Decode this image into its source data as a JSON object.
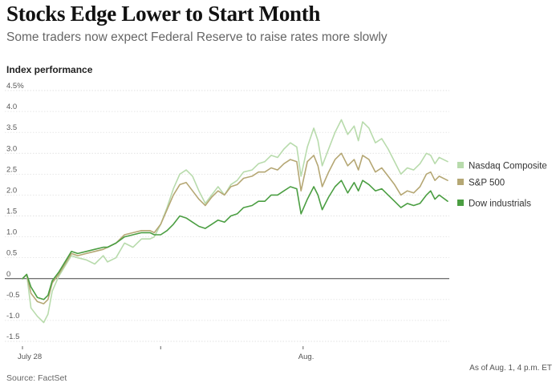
{
  "header": {
    "title": "Stocks Edge Lower to Start Month",
    "subtitle": "Some traders now expect Federal Reserve to raise rates more slowly"
  },
  "chart_label": "Index performance",
  "footer": {
    "note": "As of Aug. 1, 4 p.m. ET",
    "source": "Source: FactSet"
  },
  "colors": {
    "nasdaq": "#b8dbac",
    "sp500": "#b5a774",
    "dow": "#4b9e42",
    "zero_line": "#444444",
    "grid": "#d9d9d9"
  },
  "chart_data": {
    "type": "line",
    "title": "Stocks Edge Lower to Start Month",
    "subtitle": "Some traders now expect Federal Reserve to raise rates more slowly",
    "ylabel": "Index performance",
    "ylim": [
      -1.5,
      4.5
    ],
    "yticks": [
      -1.5,
      -1.0,
      -0.5,
      0,
      0.5,
      1.0,
      1.5,
      2.0,
      2.5,
      3.0,
      3.5,
      4.0,
      4.5
    ],
    "ytick_labels": [
      "-1.5",
      "-1.0",
      "-0.5",
      "0",
      "0.5",
      "1.0",
      "1.5",
      "2.0",
      "2.5",
      "3.0",
      "3.5",
      "4.0",
      "4.5%"
    ],
    "x_range": [
      0,
      1
    ],
    "x_ticks": [
      {
        "x": 0.0,
        "label": "July 28"
      },
      {
        "x": 0.325,
        "label": ""
      },
      {
        "x": 0.66,
        "label": "Aug."
      }
    ],
    "grid": true,
    "legend_position": "right",
    "series": [
      {
        "name": "Nasdaq Composite",
        "points": [
          [
            0,
            0
          ],
          [
            0.01,
            0.1
          ],
          [
            0.02,
            -0.7
          ],
          [
            0.035,
            -0.9
          ],
          [
            0.05,
            -1.05
          ],
          [
            0.06,
            -0.85
          ],
          [
            0.07,
            -0.3
          ],
          [
            0.085,
            0.05
          ],
          [
            0.1,
            0.3
          ],
          [
            0.115,
            0.55
          ],
          [
            0.13,
            0.5
          ],
          [
            0.15,
            0.45
          ],
          [
            0.17,
            0.35
          ],
          [
            0.19,
            0.55
          ],
          [
            0.2,
            0.4
          ],
          [
            0.22,
            0.5
          ],
          [
            0.24,
            0.85
          ],
          [
            0.26,
            0.75
          ],
          [
            0.28,
            0.95
          ],
          [
            0.3,
            0.95
          ],
          [
            0.31,
            1.0
          ],
          [
            0.325,
            1.3
          ],
          [
            0.34,
            1.7
          ],
          [
            0.355,
            2.15
          ],
          [
            0.37,
            2.5
          ],
          [
            0.385,
            2.6
          ],
          [
            0.4,
            2.45
          ],
          [
            0.415,
            2.1
          ],
          [
            0.43,
            1.8
          ],
          [
            0.445,
            2.0
          ],
          [
            0.46,
            2.2
          ],
          [
            0.475,
            2.0
          ],
          [
            0.49,
            2.25
          ],
          [
            0.505,
            2.35
          ],
          [
            0.52,
            2.55
          ],
          [
            0.54,
            2.6
          ],
          [
            0.555,
            2.75
          ],
          [
            0.57,
            2.8
          ],
          [
            0.585,
            2.95
          ],
          [
            0.6,
            2.9
          ],
          [
            0.615,
            3.1
          ],
          [
            0.63,
            3.25
          ],
          [
            0.645,
            3.15
          ],
          [
            0.655,
            2.45
          ],
          [
            0.67,
            3.15
          ],
          [
            0.685,
            3.6
          ],
          [
            0.695,
            3.3
          ],
          [
            0.705,
            2.7
          ],
          [
            0.72,
            3.1
          ],
          [
            0.735,
            3.5
          ],
          [
            0.75,
            3.8
          ],
          [
            0.765,
            3.45
          ],
          [
            0.78,
            3.65
          ],
          [
            0.79,
            3.3
          ],
          [
            0.8,
            3.75
          ],
          [
            0.815,
            3.6
          ],
          [
            0.83,
            3.25
          ],
          [
            0.845,
            3.35
          ],
          [
            0.86,
            3.1
          ],
          [
            0.875,
            2.8
          ],
          [
            0.89,
            2.5
          ],
          [
            0.905,
            2.65
          ],
          [
            0.92,
            2.6
          ],
          [
            0.935,
            2.75
          ],
          [
            0.95,
            3.0
          ],
          [
            0.96,
            2.95
          ],
          [
            0.97,
            2.75
          ],
          [
            0.98,
            2.9
          ],
          [
            1.0,
            2.8
          ]
        ]
      },
      {
        "name": "S&P 500",
        "points": [
          [
            0,
            0
          ],
          [
            0.01,
            0.1
          ],
          [
            0.02,
            -0.35
          ],
          [
            0.035,
            -0.55
          ],
          [
            0.05,
            -0.6
          ],
          [
            0.06,
            -0.5
          ],
          [
            0.07,
            -0.1
          ],
          [
            0.085,
            0.1
          ],
          [
            0.1,
            0.35
          ],
          [
            0.115,
            0.6
          ],
          [
            0.13,
            0.55
          ],
          [
            0.15,
            0.6
          ],
          [
            0.17,
            0.65
          ],
          [
            0.19,
            0.7
          ],
          [
            0.2,
            0.75
          ],
          [
            0.22,
            0.85
          ],
          [
            0.24,
            1.05
          ],
          [
            0.26,
            1.1
          ],
          [
            0.28,
            1.15
          ],
          [
            0.3,
            1.15
          ],
          [
            0.31,
            1.1
          ],
          [
            0.325,
            1.3
          ],
          [
            0.34,
            1.65
          ],
          [
            0.355,
            2.0
          ],
          [
            0.37,
            2.25
          ],
          [
            0.385,
            2.3
          ],
          [
            0.4,
            2.1
          ],
          [
            0.415,
            1.9
          ],
          [
            0.43,
            1.75
          ],
          [
            0.445,
            1.95
          ],
          [
            0.46,
            2.1
          ],
          [
            0.475,
            2.0
          ],
          [
            0.49,
            2.2
          ],
          [
            0.505,
            2.25
          ],
          [
            0.52,
            2.4
          ],
          [
            0.54,
            2.45
          ],
          [
            0.555,
            2.55
          ],
          [
            0.57,
            2.55
          ],
          [
            0.585,
            2.65
          ],
          [
            0.6,
            2.6
          ],
          [
            0.615,
            2.75
          ],
          [
            0.63,
            2.85
          ],
          [
            0.645,
            2.8
          ],
          [
            0.655,
            2.1
          ],
          [
            0.67,
            2.8
          ],
          [
            0.685,
            2.95
          ],
          [
            0.695,
            2.7
          ],
          [
            0.705,
            2.2
          ],
          [
            0.72,
            2.55
          ],
          [
            0.735,
            2.85
          ],
          [
            0.75,
            3.0
          ],
          [
            0.765,
            2.7
          ],
          [
            0.78,
            2.85
          ],
          [
            0.79,
            2.6
          ],
          [
            0.8,
            2.95
          ],
          [
            0.815,
            2.85
          ],
          [
            0.83,
            2.55
          ],
          [
            0.845,
            2.65
          ],
          [
            0.86,
            2.45
          ],
          [
            0.875,
            2.25
          ],
          [
            0.89,
            2.0
          ],
          [
            0.905,
            2.1
          ],
          [
            0.92,
            2.05
          ],
          [
            0.935,
            2.2
          ],
          [
            0.95,
            2.5
          ],
          [
            0.96,
            2.55
          ],
          [
            0.97,
            2.35
          ],
          [
            0.98,
            2.45
          ],
          [
            1.0,
            2.35
          ]
        ]
      },
      {
        "name": "Dow industrials",
        "points": [
          [
            0,
            0
          ],
          [
            0.01,
            0.1
          ],
          [
            0.02,
            -0.2
          ],
          [
            0.035,
            -0.45
          ],
          [
            0.05,
            -0.5
          ],
          [
            0.06,
            -0.4
          ],
          [
            0.07,
            -0.05
          ],
          [
            0.085,
            0.15
          ],
          [
            0.1,
            0.4
          ],
          [
            0.115,
            0.65
          ],
          [
            0.13,
            0.6
          ],
          [
            0.15,
            0.65
          ],
          [
            0.17,
            0.7
          ],
          [
            0.19,
            0.75
          ],
          [
            0.2,
            0.75
          ],
          [
            0.22,
            0.85
          ],
          [
            0.24,
            1.0
          ],
          [
            0.26,
            1.05
          ],
          [
            0.28,
            1.1
          ],
          [
            0.3,
            1.1
          ],
          [
            0.31,
            1.05
          ],
          [
            0.325,
            1.05
          ],
          [
            0.34,
            1.15
          ],
          [
            0.355,
            1.3
          ],
          [
            0.37,
            1.5
          ],
          [
            0.385,
            1.45
          ],
          [
            0.4,
            1.35
          ],
          [
            0.415,
            1.25
          ],
          [
            0.43,
            1.2
          ],
          [
            0.445,
            1.3
          ],
          [
            0.46,
            1.4
          ],
          [
            0.475,
            1.35
          ],
          [
            0.49,
            1.5
          ],
          [
            0.505,
            1.55
          ],
          [
            0.52,
            1.7
          ],
          [
            0.54,
            1.75
          ],
          [
            0.555,
            1.85
          ],
          [
            0.57,
            1.85
          ],
          [
            0.585,
            2.0
          ],
          [
            0.6,
            2.0
          ],
          [
            0.615,
            2.1
          ],
          [
            0.63,
            2.2
          ],
          [
            0.645,
            2.15
          ],
          [
            0.655,
            1.55
          ],
          [
            0.67,
            1.9
          ],
          [
            0.685,
            2.2
          ],
          [
            0.695,
            2.0
          ],
          [
            0.705,
            1.65
          ],
          [
            0.72,
            1.95
          ],
          [
            0.735,
            2.2
          ],
          [
            0.75,
            2.35
          ],
          [
            0.765,
            2.05
          ],
          [
            0.78,
            2.3
          ],
          [
            0.79,
            2.1
          ],
          [
            0.8,
            2.35
          ],
          [
            0.815,
            2.25
          ],
          [
            0.83,
            2.1
          ],
          [
            0.845,
            2.15
          ],
          [
            0.86,
            2.0
          ],
          [
            0.875,
            1.85
          ],
          [
            0.89,
            1.7
          ],
          [
            0.905,
            1.8
          ],
          [
            0.92,
            1.75
          ],
          [
            0.935,
            1.8
          ],
          [
            0.95,
            2.0
          ],
          [
            0.96,
            2.1
          ],
          [
            0.97,
            1.9
          ],
          [
            0.98,
            2.0
          ],
          [
            1.0,
            1.85
          ]
        ]
      }
    ]
  }
}
